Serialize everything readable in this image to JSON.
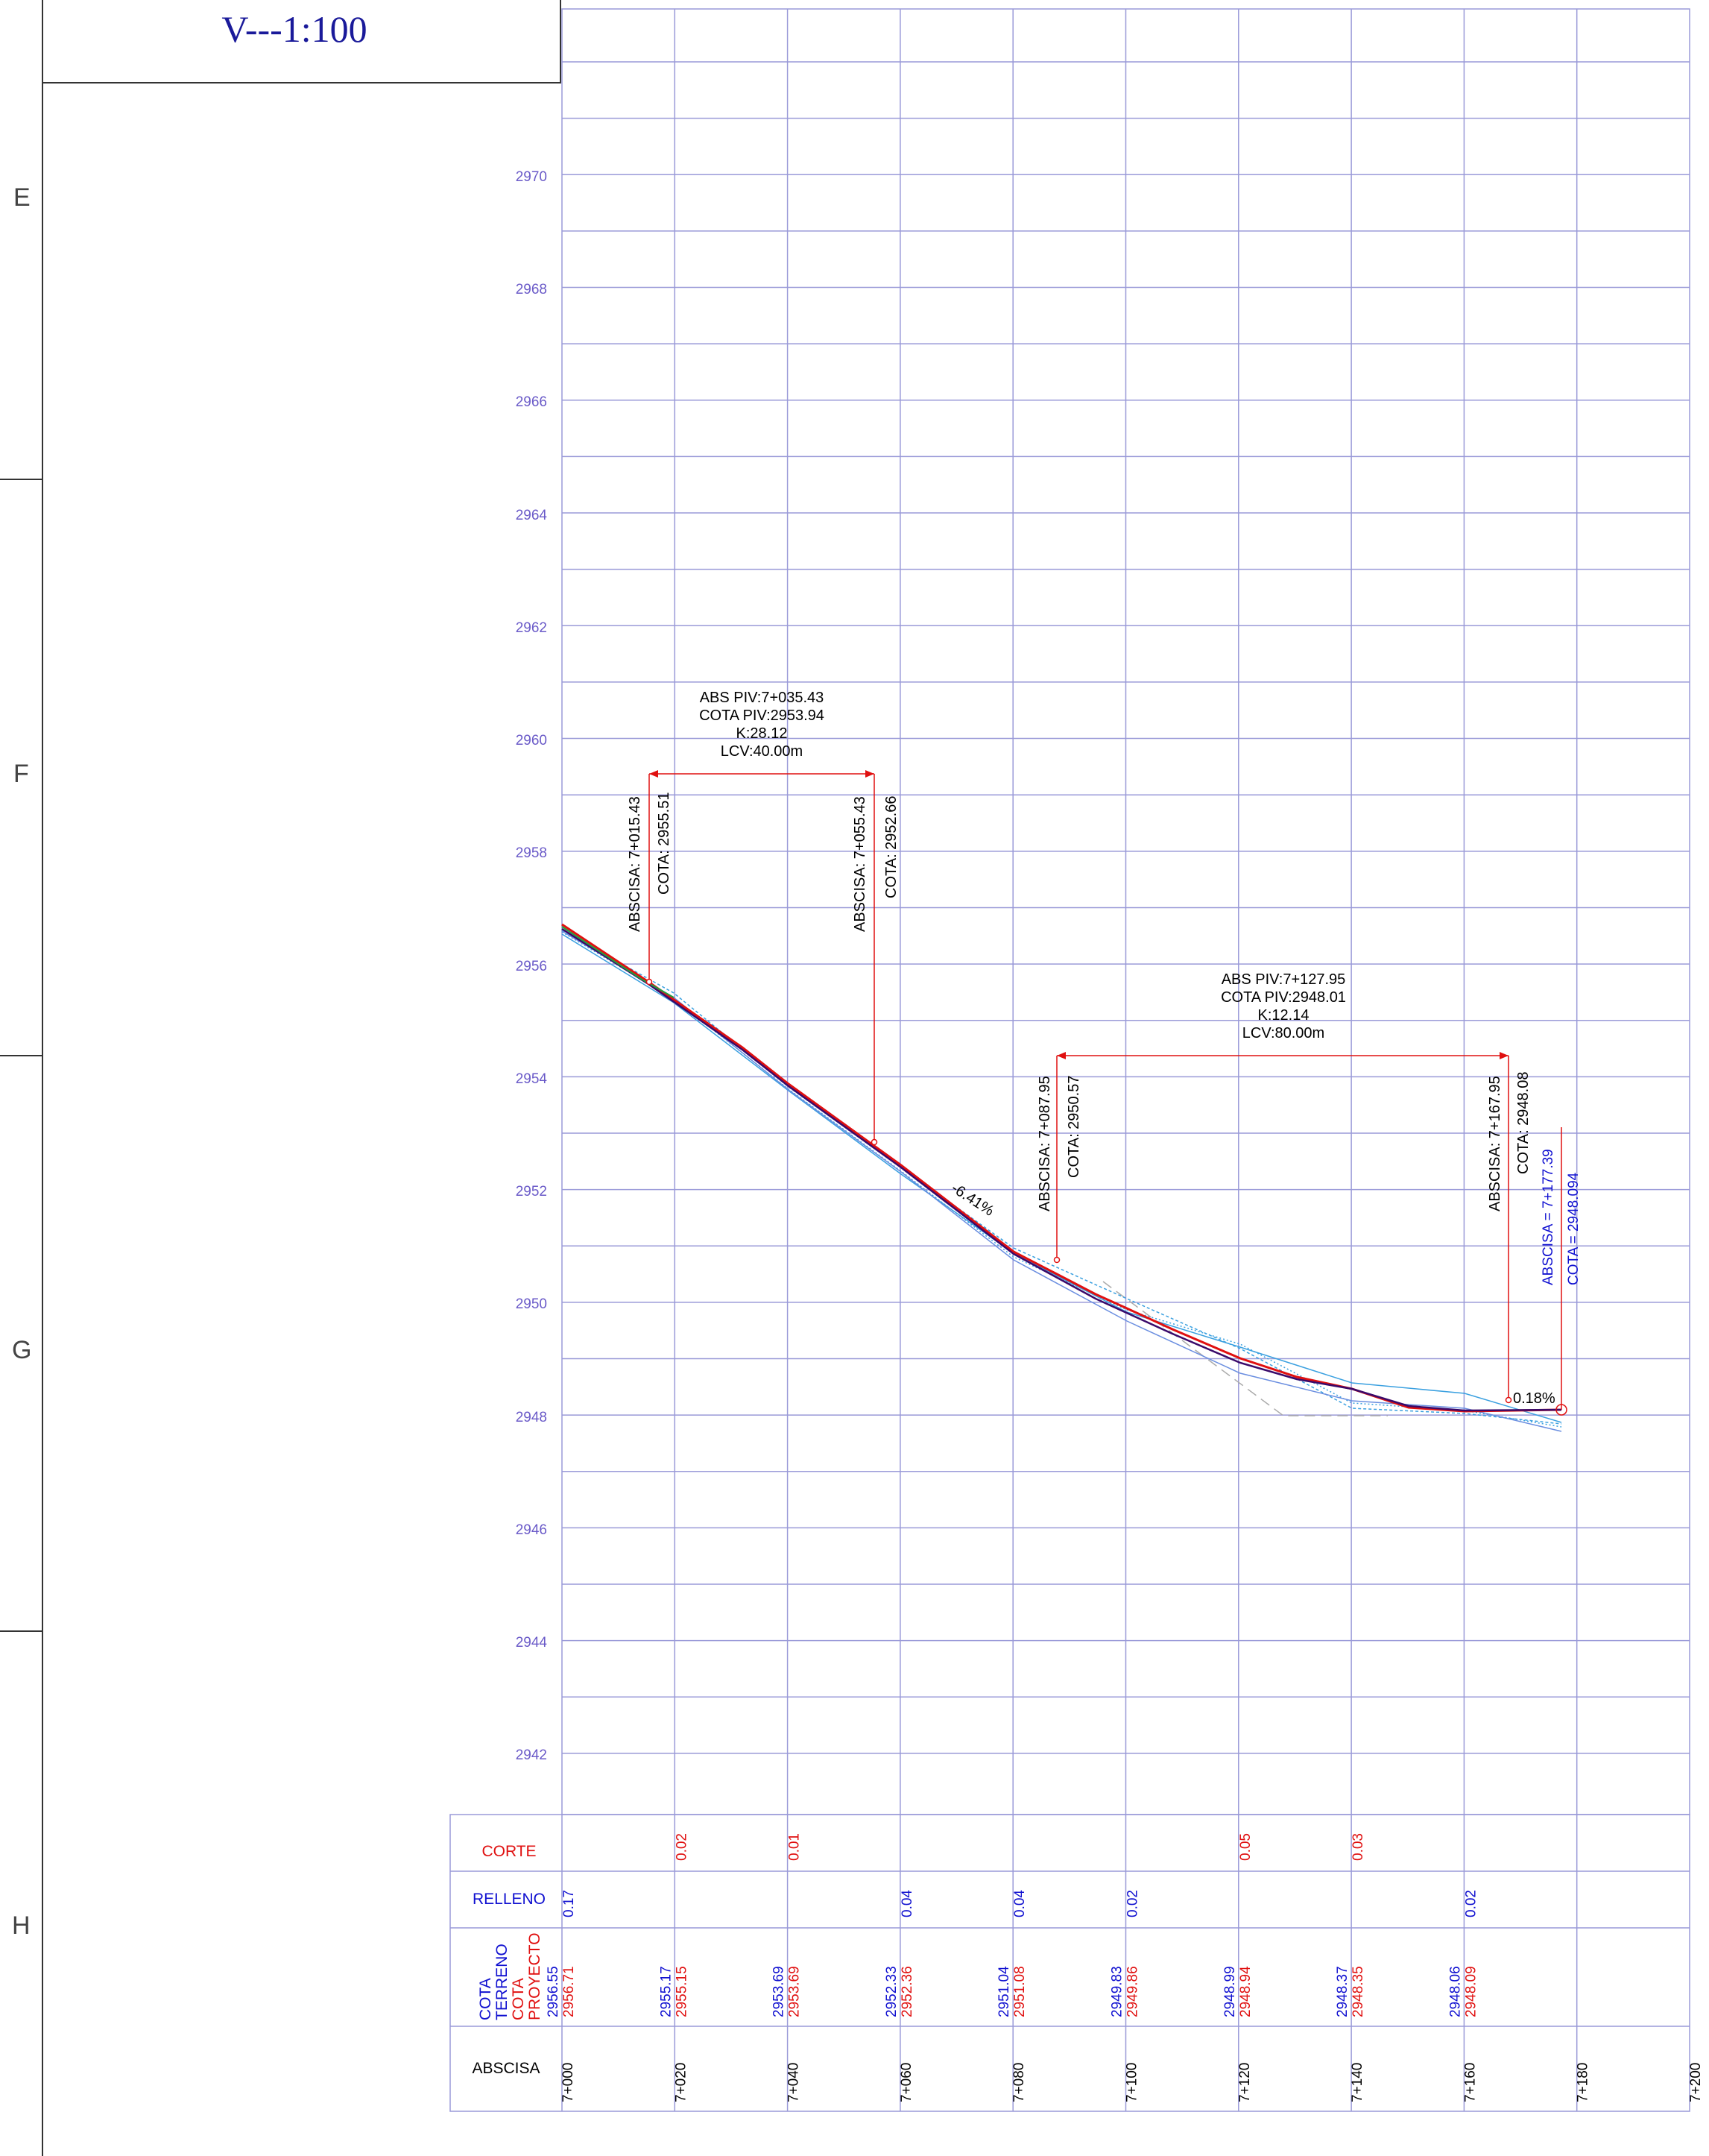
{
  "title": "V---1:100",
  "zone_letters": [
    "E",
    "F",
    "G",
    "H"
  ],
  "elevation_labels": [
    "2970",
    "2968",
    "2966",
    "2964",
    "2962",
    "2960",
    "2958",
    "2956",
    "2954",
    "2952",
    "2950",
    "2948",
    "2946",
    "2944",
    "2942"
  ],
  "station_labels": [
    "7+000",
    "7+020",
    "7+040",
    "7+060",
    "7+080",
    "7+100",
    "7+120",
    "7+140",
    "7+160",
    "7+180",
    "7+200"
  ],
  "vertical_curves": [
    {
      "piv_abs": "ABS PIV:7+035.43",
      "piv_cota": "COTA PIV:2953.94",
      "k": "K:28.12",
      "lcv": "LCV:40.00m",
      "pcv_abs": "ABSCISA: 7+015.43",
      "pcv_cota": "COTA: 2955.51",
      "ptv_abs": "ABSCISA: 7+055.43",
      "ptv_cota": "COTA: 2952.66"
    },
    {
      "piv_abs": "ABS PIV:7+127.95",
      "piv_cota": "COTA PIV:2948.01",
      "k": "K:12.14",
      "lcv": "LCV:80.00m",
      "pcv_abs": "ABSCISA: 7+087.95",
      "pcv_cota": "COTA: 2950.57",
      "ptv_abs": "ABSCISA: 7+167.95",
      "ptv_cota": "COTA: 2948.08"
    }
  ],
  "grade_labels": [
    "-6.41%",
    "0.18%"
  ],
  "end_point": {
    "abscisa": "ABSCISA = 7+177.39",
    "cota": "COTA =  2948.094"
  },
  "table": {
    "row_labels": {
      "corte": "CORTE",
      "relleno": "RELLENO",
      "cota_terreno": [
        "COTA",
        "TERRENO"
      ],
      "cota_proyecto": [
        "COTA",
        "PROYECTO"
      ],
      "abscisa": "ABSCISA"
    },
    "corte": [
      "",
      "0.02",
      "0.01",
      "",
      "",
      "",
      "0.05",
      "0.03",
      "",
      ""
    ],
    "relleno": [
      "0.17",
      "",
      "",
      "0.04",
      "0.04",
      "0.02",
      "",
      "",
      "0.02",
      ""
    ],
    "cota_terreno": [
      "2956.55",
      "2955.17",
      "2953.69",
      "2952.33",
      "2951.04",
      "2949.83",
      "2948.99",
      "2948.37",
      "2948.06"
    ],
    "cota_proyecto": [
      "2956.71",
      "2955.15",
      "2953.69",
      "2952.36",
      "2951.08",
      "2949.86",
      "2948.94",
      "2948.35",
      "2948.09"
    ]
  },
  "colors": {
    "grid": "#9a9ad8",
    "elevation_text": "#6a5ac8",
    "proyecto": "#e01010",
    "terreno": "#1010d0",
    "ground_lines": "#3aa0e0",
    "title": "#1a1a9a"
  }
}
